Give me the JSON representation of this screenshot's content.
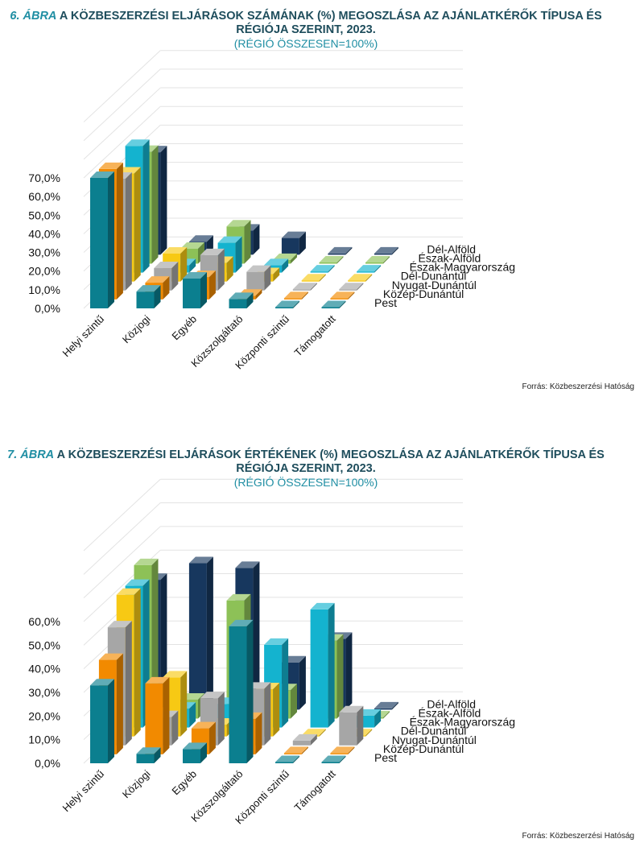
{
  "chart_data": [
    {
      "type": "bar",
      "figure_number": "6. ÁBRA",
      "title": "A KÖZBESZERZÉSI ELJÁRÁSOK SZÁMÁNAK (%) MEGOSZLÁSA AZ AJÁNLATKÉRŐK TÍPUSA ÉS RÉGIÓJA SZERINT, 2023.",
      "subtitle": "(RÉGIÓ ÖSSZESEN=100%)",
      "source": "Forrás: Közbeszerzési  Hatóság",
      "y_ticks": [
        "70,0%",
        "60,0%",
        "50,0%",
        "40,0%",
        "30,0%",
        "20,0%",
        "10,0%",
        "0,0%"
      ],
      "ylim": [
        0,
        70
      ],
      "categories": [
        "Helyi szintű",
        "Közjogi",
        "Egyéb",
        "Közszolgáltató",
        "Központi szintű",
        "Támogatott"
      ],
      "series": [
        {
          "name": "Pest",
          "values": [
            70,
            9,
            16,
            5,
            0.5,
            0.5
          ]
        },
        {
          "name": "Közép-Dunántúl",
          "values": [
            70,
            9,
            12,
            2,
            0.5,
            0.5
          ]
        },
        {
          "name": "Nyugat-Dunántúl",
          "values": [
            60,
            12,
            19,
            10,
            0.5,
            0.5
          ]
        },
        {
          "name": "Dél-Dunántúl",
          "values": [
            58,
            15,
            10,
            4,
            0.5,
            0.5
          ]
        },
        {
          "name": "Észak-Magyarország",
          "values": [
            68,
            4,
            16,
            4,
            0.5,
            0.5
          ]
        },
        {
          "name": "Észak-Alföld",
          "values": [
            60,
            8,
            20,
            2,
            0.5,
            0.5
          ]
        },
        {
          "name": "Dél-Alföld",
          "values": [
            55,
            7,
            13,
            9,
            0.5,
            0.5
          ]
        }
      ]
    },
    {
      "type": "bar",
      "figure_number": "7. ÁBRA",
      "title": "A KÖZBESZERZÉSI ELJÁRÁSOK ÉRTÉKÉNEK (%) MEGOSZLÁSA AZ AJÁNLATKÉRŐK TÍPUSA ÉS RÉGIÓJA SZERINT, 2023.",
      "subtitle": "(RÉGIÓ ÖSSZESEN=100%)",
      "source": "Forrás: Közbeszerzési  Hatóság",
      "y_ticks": [
        "60,0%",
        "50,0%",
        "40,0%",
        "30,0%",
        "20,0%",
        "10,0%",
        "0,0%"
      ],
      "ylim": [
        0,
        60
      ],
      "categories": [
        "Helyi szintű",
        "Közjogi",
        "Egyéb",
        "Közszolgáltató",
        "Központi szintű",
        "Támogatott"
      ],
      "series": [
        {
          "name": "Pest",
          "values": [
            33,
            4,
            6,
            58,
            0.5,
            0.5
          ]
        },
        {
          "name": "Közép-Dunántúl",
          "values": [
            40,
            30,
            11,
            15,
            0.5,
            0.5
          ]
        },
        {
          "name": "Nyugat-Dunántúl",
          "values": [
            50,
            12,
            20,
            24,
            2,
            14
          ]
        },
        {
          "name": "Dél-Dunántúl",
          "values": [
            60,
            25,
            5,
            20,
            0.5,
            0.5
          ]
        },
        {
          "name": "Észak-Magyarország",
          "values": [
            60,
            8,
            10,
            35,
            50,
            5
          ]
        },
        {
          "name": "Észak-Alföld",
          "values": [
            65,
            8,
            50,
            12,
            33,
            0.5
          ]
        },
        {
          "name": "Dél-Alföld",
          "values": [
            55,
            62,
            60,
            20,
            30,
            0.5
          ]
        }
      ]
    }
  ],
  "colors": {
    "Pest": "#0b7f8f",
    "Közép-Dunántúl": "#f28a00",
    "Nyugat-Dunántúl": "#a6a6a6",
    "Dél-Dunántúl": "#f7c914",
    "Észak-Magyarország": "#14b3cf",
    "Észak-Alföld": "#8dc157",
    "Dél-Alföld": "#17375e",
    "title": "#1e4d5c",
    "accent": "#1f8ea3"
  }
}
